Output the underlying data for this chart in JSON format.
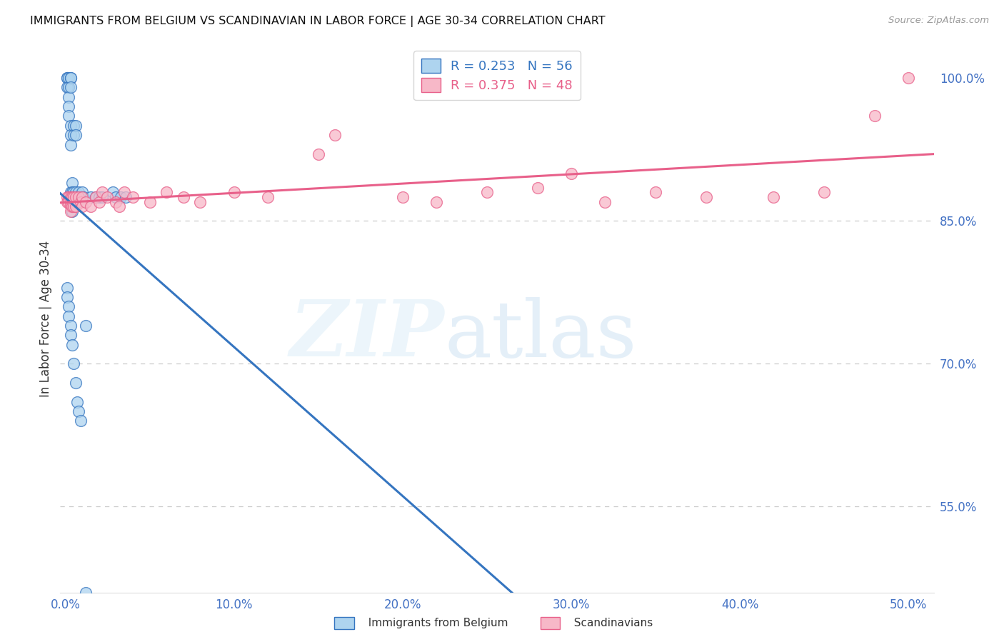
{
  "title": "IMMIGRANTS FROM BELGIUM VS SCANDINAVIAN IN LABOR FORCE | AGE 30-34 CORRELATION CHART",
  "source": "Source: ZipAtlas.com",
  "xlabel_ticks": [
    "0.0%",
    "10.0%",
    "20.0%",
    "30.0%",
    "40.0%",
    "50.0%"
  ],
  "xlabel_vals": [
    0.0,
    0.1,
    0.2,
    0.3,
    0.4,
    0.5
  ],
  "ylabel": "In Labor Force | Age 30-34",
  "ylabel_ticks": [
    "100.0%",
    "85.0%",
    "70.0%",
    "55.0%"
  ],
  "ylabel_vals": [
    1.0,
    0.85,
    0.7,
    0.55
  ],
  "ymin": 0.46,
  "ymax": 1.035,
  "xmin": -0.003,
  "xmax": 0.515,
  "color_belgium": "#aed4ef",
  "color_scand": "#f7b8c8",
  "color_belgium_line": "#3575c0",
  "color_scand_line": "#e8608a",
  "color_axis_labels": "#4472c4",
  "gridline_color": "#cccccc",
  "gridline_vals": [
    0.85,
    0.7,
    0.55
  ],
  "belgium_x": [
    0.001,
    0.001,
    0.001,
    0.002,
    0.002,
    0.002,
    0.002,
    0.002,
    0.003,
    0.003,
    0.003,
    0.003,
    0.003,
    0.003,
    0.003,
    0.004,
    0.004,
    0.004,
    0.004,
    0.004,
    0.005,
    0.005,
    0.005,
    0.005,
    0.006,
    0.006,
    0.006,
    0.007,
    0.007,
    0.008,
    0.008,
    0.01,
    0.01,
    0.011,
    0.012,
    0.015,
    0.018,
    0.02,
    0.022,
    0.028,
    0.03,
    0.033,
    0.036,
    0.001,
    0.001,
    0.002,
    0.002,
    0.003,
    0.003,
    0.004,
    0.005,
    0.006,
    0.007,
    0.008,
    0.009,
    0.012
  ],
  "belgium_y": [
    1.0,
    1.0,
    0.99,
    1.0,
    0.99,
    0.98,
    0.97,
    0.96,
    1.0,
    1.0,
    0.99,
    0.95,
    0.94,
    0.93,
    0.88,
    0.89,
    0.88,
    0.875,
    0.87,
    0.86,
    0.95,
    0.94,
    0.88,
    0.87,
    0.95,
    0.94,
    0.88,
    0.875,
    0.87,
    0.88,
    0.875,
    0.88,
    0.875,
    0.875,
    0.74,
    0.875,
    0.875,
    0.875,
    0.875,
    0.88,
    0.875,
    0.875,
    0.875,
    0.78,
    0.77,
    0.76,
    0.75,
    0.74,
    0.73,
    0.72,
    0.7,
    0.68,
    0.66,
    0.65,
    0.64,
    0.46
  ],
  "scand_x": [
    0.001,
    0.001,
    0.002,
    0.002,
    0.003,
    0.003,
    0.003,
    0.003,
    0.004,
    0.004,
    0.005,
    0.005,
    0.006,
    0.006,
    0.008,
    0.009,
    0.01,
    0.01,
    0.012,
    0.015,
    0.018,
    0.02,
    0.022,
    0.025,
    0.03,
    0.032,
    0.035,
    0.04,
    0.05,
    0.06,
    0.07,
    0.08,
    0.1,
    0.12,
    0.15,
    0.16,
    0.2,
    0.22,
    0.25,
    0.28,
    0.3,
    0.32,
    0.35,
    0.38,
    0.42,
    0.45,
    0.48,
    0.5
  ],
  "scand_y": [
    0.875,
    0.87,
    0.875,
    0.87,
    0.875,
    0.87,
    0.865,
    0.86,
    0.875,
    0.865,
    0.875,
    0.865,
    0.875,
    0.865,
    0.875,
    0.87,
    0.875,
    0.865,
    0.87,
    0.865,
    0.875,
    0.87,
    0.88,
    0.875,
    0.87,
    0.865,
    0.88,
    0.875,
    0.87,
    0.88,
    0.875,
    0.87,
    0.88,
    0.875,
    0.92,
    0.94,
    0.875,
    0.87,
    0.88,
    0.885,
    0.9,
    0.87,
    0.88,
    0.875,
    0.875,
    0.88,
    0.96,
    1.0
  ]
}
